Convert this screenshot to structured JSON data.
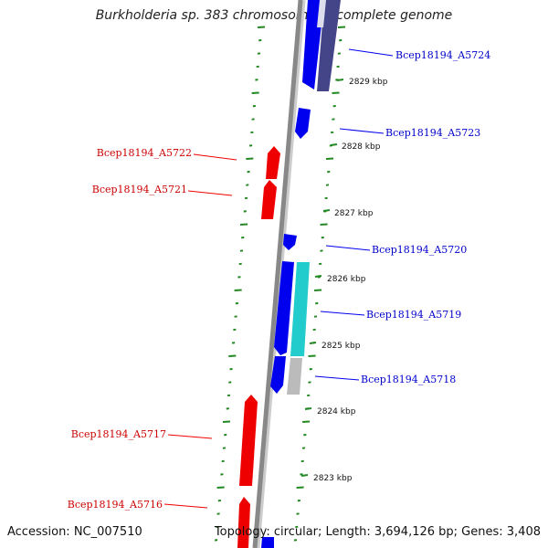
{
  "header": {
    "title": "Burkholderia sp. 383 chromosome 1, complete genome"
  },
  "footer": {
    "accession": "Accession: NC_007510",
    "summary": "Topology: circular; Length: 3,694,126 bp; Genes: 3,408"
  },
  "colors": {
    "forward_gene": "#0000ee",
    "reverse_gene": "#ee0000",
    "backbone": "#888888",
    "ticks": "#228822",
    "cyan_feature": "#22cccc",
    "grey_feature": "#bbbbbb",
    "purple_feature": "#444488"
  },
  "gene_labels": [
    {
      "name": "Bcep18194_A5724",
      "strand": "forward"
    },
    {
      "name": "Bcep18194_A5723",
      "strand": "forward"
    },
    {
      "name": "Bcep18194_A5722",
      "strand": "reverse"
    },
    {
      "name": "Bcep18194_A5721",
      "strand": "reverse"
    },
    {
      "name": "Bcep18194_A5720",
      "strand": "forward"
    },
    {
      "name": "Bcep18194_A5719",
      "strand": "forward"
    },
    {
      "name": "Bcep18194_A5718",
      "strand": "forward"
    },
    {
      "name": "Bcep18194_A5717",
      "strand": "reverse"
    },
    {
      "name": "Bcep18194_A5716",
      "strand": "reverse"
    }
  ],
  "scale_labels": [
    "2829 kbp",
    "2828 kbp",
    "2827 kbp",
    "2826 kbp",
    "2825 kbp",
    "2824 kbp",
    "2823 kbp"
  ]
}
